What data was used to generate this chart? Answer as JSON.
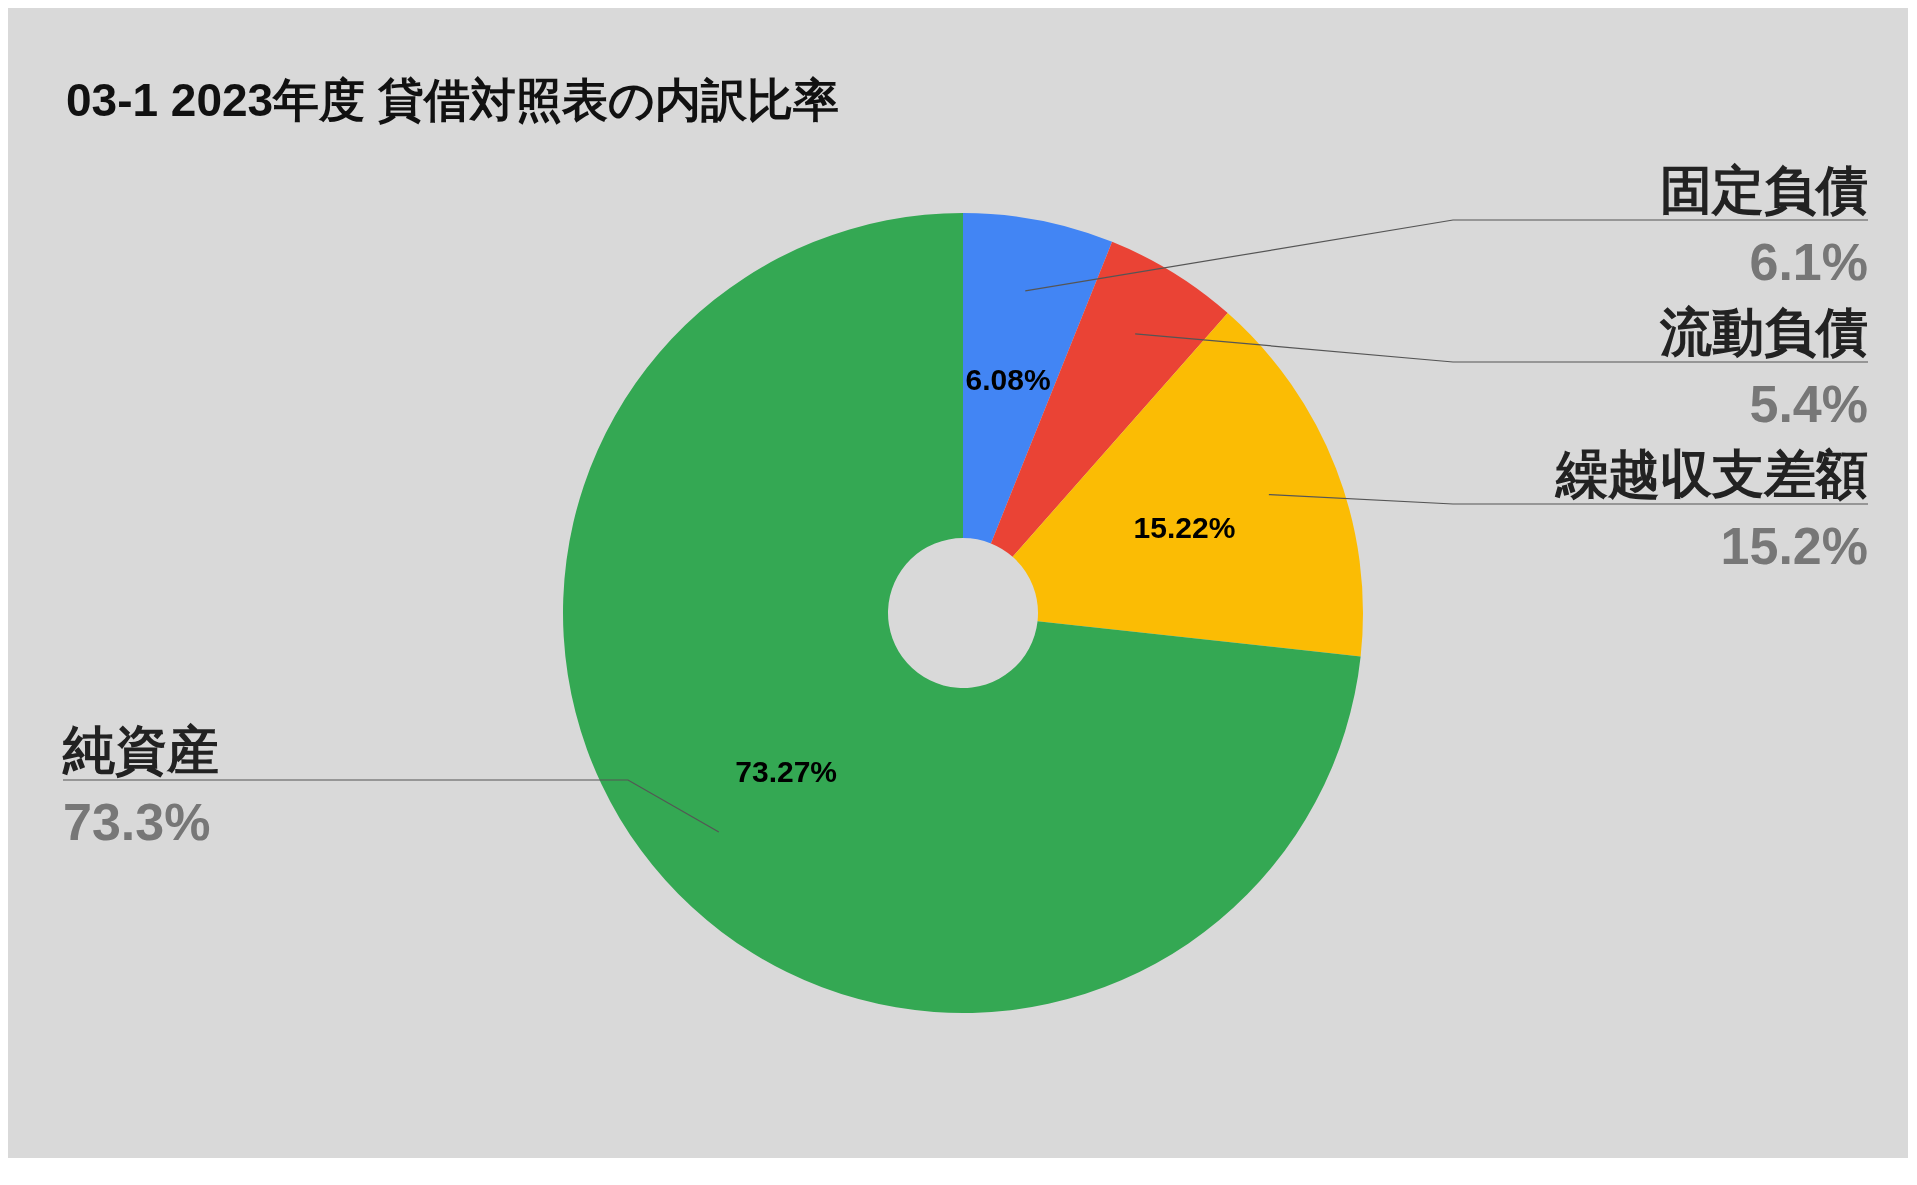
{
  "chart_data": {
    "type": "donut",
    "title": "03-1 2023年度 貸借対照表の内訳比率",
    "categories": [
      "固定負債",
      "流動負債",
      "繰越収支差額",
      "純資産"
    ],
    "values": [
      6.08,
      5.43,
      15.22,
      73.27
    ],
    "colors": [
      "#4285f4",
      "#ea4335",
      "#fbbc04",
      "#34a853"
    ],
    "value_labels": [
      "6.08%",
      null,
      "15.22%",
      "73.27%"
    ],
    "annotations": [
      "6.1%",
      "5.4%",
      "15.2%",
      "73.3%"
    ],
    "legend": false
  }
}
